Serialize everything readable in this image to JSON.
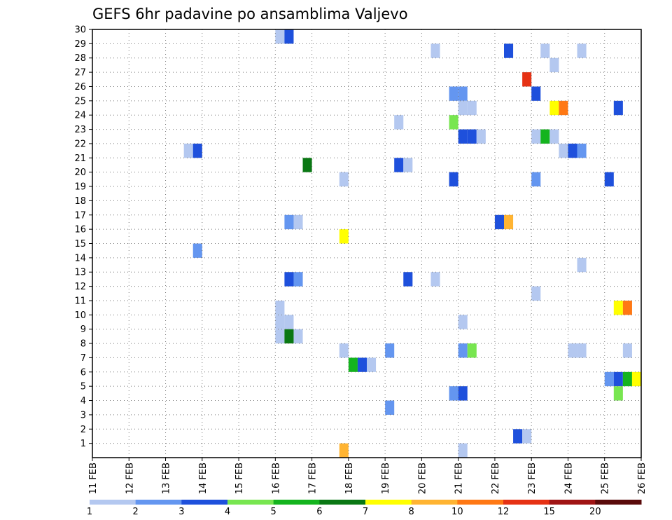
{
  "chart_data": {
    "type": "heatmap",
    "title": "GEFS 6hr padavine po ansamblima Valjevo",
    "xlabel": "",
    "ylabel": "",
    "x_tick_labels": [
      "11 FEB",
      "12 FEB",
      "13 FEB",
      "14 FEB",
      "15 FEB",
      "16 FEB",
      "17 FEB",
      "18 FEB",
      "19 FEB",
      "20 FEB",
      "21 FEB",
      "22 FEB",
      "23 FEB",
      "24 FEB",
      "25 FEB",
      "26 FEB"
    ],
    "y_tick_labels": [
      "1",
      "2",
      "3",
      "4",
      "5",
      "6",
      "7",
      "8",
      "9",
      "10",
      "11",
      "12",
      "13",
      "14",
      "15",
      "16",
      "17",
      "18",
      "19",
      "20",
      "21",
      "22",
      "23",
      "24",
      "25",
      "26",
      "27",
      "28",
      "29",
      "30"
    ],
    "xlim_days": [
      0,
      15
    ],
    "ylim": [
      0,
      30
    ],
    "grid": true,
    "legend": {
      "placement": "bottom",
      "labels": [
        "1",
        "2",
        "3",
        "4",
        "5",
        "6",
        "7",
        "8",
        "10",
        "12",
        "15",
        "20"
      ],
      "colors": [
        "#b4c8f0",
        "#6496f0",
        "#1e50dc",
        "#78e650",
        "#14b41e",
        "#0a7814",
        "#ffff00",
        "#ffb432",
        "#ff7814",
        "#e63214",
        "#a01414",
        "#5a0a0a"
      ]
    },
    "cells": [
      {
        "day": 5.0,
        "member": 29,
        "level": 0
      },
      {
        "day": 5.25,
        "member": 29,
        "level": 2
      },
      {
        "day": 9.25,
        "member": 28,
        "level": 0
      },
      {
        "day": 11.25,
        "member": 28,
        "level": 2
      },
      {
        "day": 12.25,
        "member": 28,
        "level": 0
      },
      {
        "day": 13.25,
        "member": 28,
        "level": 0
      },
      {
        "day": 12.5,
        "member": 27,
        "level": 0
      },
      {
        "day": 11.75,
        "member": 26,
        "level": 9
      },
      {
        "day": 9.75,
        "member": 25,
        "level": 1
      },
      {
        "day": 10.0,
        "member": 25,
        "level": 1
      },
      {
        "day": 12.0,
        "member": 25,
        "level": 2
      },
      {
        "day": 10.0,
        "member": 24,
        "level": 0
      },
      {
        "day": 10.25,
        "member": 24,
        "level": 0
      },
      {
        "day": 12.5,
        "member": 24,
        "level": 6
      },
      {
        "day": 12.75,
        "member": 24,
        "level": 8
      },
      {
        "day": 14.25,
        "member": 24,
        "level": 2
      },
      {
        "day": 8.25,
        "member": 23,
        "level": 0
      },
      {
        "day": 9.75,
        "member": 23,
        "level": 3
      },
      {
        "day": 10.0,
        "member": 22,
        "level": 2
      },
      {
        "day": 10.25,
        "member": 22,
        "level": 2
      },
      {
        "day": 10.5,
        "member": 22,
        "level": 0
      },
      {
        "day": 12.0,
        "member": 22,
        "level": 0
      },
      {
        "day": 12.25,
        "member": 22,
        "level": 4
      },
      {
        "day": 12.5,
        "member": 22,
        "level": 0
      },
      {
        "day": 2.5,
        "member": 21,
        "level": 0
      },
      {
        "day": 2.75,
        "member": 21,
        "level": 2
      },
      {
        "day": 12.75,
        "member": 21,
        "level": 0
      },
      {
        "day": 13.0,
        "member": 21,
        "level": 2
      },
      {
        "day": 13.25,
        "member": 21,
        "level": 1
      },
      {
        "day": 5.75,
        "member": 20,
        "level": 5
      },
      {
        "day": 8.25,
        "member": 20,
        "level": 2
      },
      {
        "day": 8.5,
        "member": 20,
        "level": 0
      },
      {
        "day": 6.75,
        "member": 19,
        "level": 0
      },
      {
        "day": 9.75,
        "member": 19,
        "level": 2
      },
      {
        "day": 12.0,
        "member": 19,
        "level": 1
      },
      {
        "day": 14.0,
        "member": 19,
        "level": 2
      },
      {
        "day": 5.25,
        "member": 16,
        "level": 1
      },
      {
        "day": 5.5,
        "member": 16,
        "level": 0
      },
      {
        "day": 11.0,
        "member": 16,
        "level": 2
      },
      {
        "day": 11.25,
        "member": 16,
        "level": 7
      },
      {
        "day": 6.75,
        "member": 15,
        "level": 6
      },
      {
        "day": 2.75,
        "member": 14,
        "level": 1
      },
      {
        "day": 13.25,
        "member": 13,
        "level": 0
      },
      {
        "day": 5.25,
        "member": 12,
        "level": 2
      },
      {
        "day": 5.5,
        "member": 12,
        "level": 1
      },
      {
        "day": 8.5,
        "member": 12,
        "level": 2
      },
      {
        "day": 9.25,
        "member": 12,
        "level": 0
      },
      {
        "day": 12.0,
        "member": 11,
        "level": 0
      },
      {
        "day": 14.25,
        "member": 10,
        "level": 6
      },
      {
        "day": 14.5,
        "member": 10,
        "level": 8
      },
      {
        "day": 5.0,
        "member": 10,
        "level": 0
      },
      {
        "day": 5.0,
        "member": 9,
        "level": 0
      },
      {
        "day": 5.25,
        "member": 9,
        "level": 0
      },
      {
        "day": 10.0,
        "member": 9,
        "level": 0
      },
      {
        "day": 5.0,
        "member": 8,
        "level": 0
      },
      {
        "day": 5.25,
        "member": 8,
        "level": 5
      },
      {
        "day": 5.5,
        "member": 8,
        "level": 0
      },
      {
        "day": 6.75,
        "member": 7,
        "level": 0
      },
      {
        "day": 8.0,
        "member": 7,
        "level": 1
      },
      {
        "day": 10.0,
        "member": 7,
        "level": 1
      },
      {
        "day": 10.25,
        "member": 7,
        "level": 3
      },
      {
        "day": 13.0,
        "member": 7,
        "level": 0
      },
      {
        "day": 13.25,
        "member": 7,
        "level": 0
      },
      {
        "day": 14.5,
        "member": 7,
        "level": 0
      },
      {
        "day": 7.0,
        "member": 6,
        "level": 4
      },
      {
        "day": 7.25,
        "member": 6,
        "level": 2
      },
      {
        "day": 7.5,
        "member": 6,
        "level": 0
      },
      {
        "day": 14.0,
        "member": 5,
        "level": 1
      },
      {
        "day": 14.25,
        "member": 5,
        "level": 2
      },
      {
        "day": 14.5,
        "member": 5,
        "level": 4
      },
      {
        "day": 14.75,
        "member": 5,
        "level": 6
      },
      {
        "day": 9.75,
        "member": 4,
        "level": 1
      },
      {
        "day": 10.0,
        "member": 4,
        "level": 2
      },
      {
        "day": 14.25,
        "member": 4,
        "level": 3
      },
      {
        "day": 8.0,
        "member": 3,
        "level": 1
      },
      {
        "day": 11.5,
        "member": 1,
        "level": 2
      },
      {
        "day": 11.75,
        "member": 1,
        "level": 0
      },
      {
        "day": 6.75,
        "member": 0,
        "level": 7
      },
      {
        "day": 10.0,
        "member": 0,
        "level": 0
      }
    ]
  }
}
